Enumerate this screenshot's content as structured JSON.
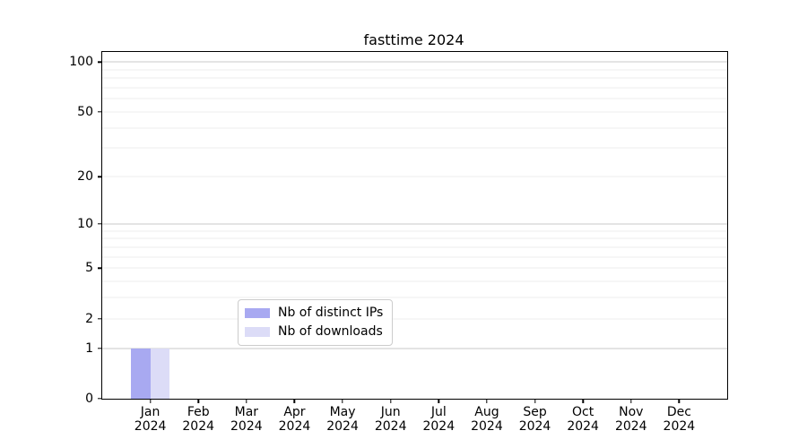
{
  "figure": {
    "title": "fasttime 2024"
  },
  "chart_data": {
    "type": "bar",
    "title": "fasttime 2024",
    "xlabel": "",
    "ylabel": "",
    "yscale": "log1p",
    "ylim": [
      0,
      115
    ],
    "yticks": [
      0,
      1,
      2,
      5,
      10,
      20,
      50,
      100
    ],
    "x_categories": [
      {
        "month": "Jan",
        "year": "2024"
      },
      {
        "month": "Feb",
        "year": "2024"
      },
      {
        "month": "Mar",
        "year": "2024"
      },
      {
        "month": "Apr",
        "year": "2024"
      },
      {
        "month": "May",
        "year": "2024"
      },
      {
        "month": "Jun",
        "year": "2024"
      },
      {
        "month": "Jul",
        "year": "2024"
      },
      {
        "month": "Aug",
        "year": "2024"
      },
      {
        "month": "Sep",
        "year": "2024"
      },
      {
        "month": "Oct",
        "year": "2024"
      },
      {
        "month": "Nov",
        "year": "2024"
      },
      {
        "month": "Dec",
        "year": "2024"
      }
    ],
    "series": [
      {
        "name": "Nb of distinct IPs",
        "color": "#a8a9f1",
        "values": [
          1,
          0,
          0,
          0,
          0,
          0,
          0,
          0,
          0,
          0,
          0,
          0
        ]
      },
      {
        "name": "Nb of downloads",
        "color": "#dcdcf7",
        "values": [
          1,
          0,
          0,
          0,
          0,
          0,
          0,
          0,
          0,
          0,
          0,
          0
        ]
      }
    ],
    "grid": {
      "major_at": [
        1,
        10,
        100
      ],
      "minor_at": [
        2,
        3,
        4,
        5,
        6,
        7,
        8,
        9,
        20,
        30,
        40,
        50,
        60,
        70,
        80,
        90
      ],
      "major_color": "#c9c9c9",
      "minor_color": "#ececec"
    },
    "legend": {
      "position": "lower center"
    },
    "axis_color": "#000000",
    "background": "#ffffff"
  }
}
